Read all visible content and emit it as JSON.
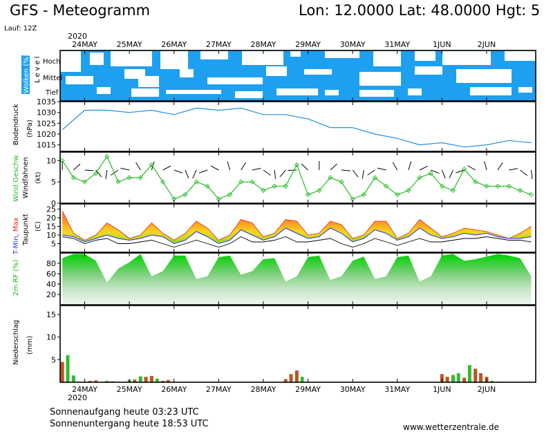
{
  "header": {
    "title": "GFS - Meteogramm",
    "coords": "Lon: 12.0000  Lat: 48.0000  Hgt: 5",
    "run": "Lauf: 12Z",
    "year_top": "2020",
    "year_bottom": "2020"
  },
  "footer": {
    "sunrise": "Sonnenaufgang heute 03:23 UTC",
    "sunset": "Sonnenuntergang heute 18:53 UTC",
    "website": "www.wetterzentrale.de"
  },
  "colors": {
    "cloud": "#1ea0f0",
    "pressure": "#2090e0",
    "wind": "#22bb22",
    "humidity": "#11cc11",
    "precip_green": "#33bb33",
    "precip_brown": "#bb5522",
    "tmin_label": "#2233ee",
    "tmax_label": "#ee2222"
  },
  "chart_data": [
    {
      "type": "heatmap",
      "name": "clouds",
      "ylabel": "Wolken (%)",
      "level_label": "Level",
      "levels": [
        "Hoch",
        "Mittel",
        "Tief"
      ],
      "x_days": [
        "24MAY",
        "25MAY",
        "26MAY",
        "27MAY",
        "28MAY",
        "29MAY",
        "30MAY",
        "31MAY",
        "1JUN",
        "2JUN"
      ]
    },
    {
      "type": "line",
      "name": "pressure",
      "ylabel": "Bodendruck",
      "unit": "(hPa)",
      "ylim": [
        1012,
        1035
      ],
      "yticks": [
        1015,
        1020,
        1025,
        1030,
        1035
      ],
      "x_days": [
        23.5,
        24.0,
        24.5,
        25.0,
        25.5,
        26.0,
        26.5,
        27.0,
        27.5,
        28.0,
        28.5,
        29.0,
        29.5,
        30.0,
        30.5,
        31.0,
        31.5,
        32.0,
        32.5,
        33.0,
        33.5,
        34.0
      ],
      "values": [
        1022,
        1031,
        1031,
        1030,
        1031,
        1029,
        1032,
        1031,
        1032,
        1029,
        1029,
        1027,
        1023,
        1023,
        1020,
        1018,
        1015,
        1016,
        1014,
        1015,
        1017,
        1016
      ]
    },
    {
      "type": "line",
      "name": "wind",
      "ylabel_series": "Wind Geschw.",
      "ylabel_flags": "Windfahnen",
      "unit": "(kt)",
      "ylim": [
        0,
        12
      ],
      "yticks": [
        0,
        5,
        10
      ],
      "x_days": [
        23.5,
        23.75,
        24.0,
        24.25,
        24.5,
        24.75,
        25.0,
        25.25,
        25.5,
        25.75,
        26.0,
        26.25,
        26.5,
        26.75,
        27.0,
        27.25,
        27.5,
        27.75,
        28.0,
        28.25,
        28.5,
        28.75,
        29.0,
        29.25,
        29.5,
        29.75,
        30.0,
        30.25,
        30.5,
        30.75,
        31.0,
        31.25,
        31.5,
        31.75,
        32.0,
        32.25,
        32.5,
        32.75,
        33.0,
        33.25,
        33.5,
        33.75,
        34.0
      ],
      "values": [
        10,
        6,
        5,
        7,
        11,
        5,
        6,
        6,
        9,
        5,
        1,
        2,
        5,
        4,
        1,
        2,
        5,
        5,
        3,
        4,
        4,
        9,
        2,
        3,
        6,
        5,
        1,
        2,
        6,
        4,
        2,
        3,
        6,
        7,
        4,
        3,
        8,
        5,
        4,
        4,
        4,
        3,
        2
      ]
    },
    {
      "type": "area",
      "name": "temperature",
      "ylabel_tmin": "T-Min,",
      "ylabel_tmax": "Max",
      "ylabel_dew": "Taupunkt",
      "unit": "(C)",
      "ylim": [
        0,
        28
      ],
      "yticks": [
        5,
        10,
        15,
        20,
        25
      ],
      "x_days": [
        23.5,
        23.75,
        24.0,
        24.25,
        24.5,
        24.75,
        25.0,
        25.25,
        25.5,
        25.75,
        26.0,
        26.25,
        26.5,
        26.75,
        27.0,
        27.25,
        27.5,
        27.75,
        28.0,
        28.25,
        28.5,
        28.75,
        29.0,
        29.25,
        29.5,
        29.75,
        30.0,
        30.25,
        30.5,
        30.75,
        31.0,
        31.25,
        31.5,
        31.75,
        32.0,
        32.25,
        32.5,
        32.75,
        33.0,
        33.25,
        33.5,
        33.75,
        34.0
      ],
      "tmax": [
        24,
        11,
        7,
        10,
        17,
        13,
        8,
        10,
        17,
        11,
        7,
        11,
        18,
        14,
        7,
        10,
        19,
        17,
        9,
        11,
        19,
        18,
        10,
        11,
        18,
        16,
        8,
        10,
        18,
        18,
        8,
        11,
        19,
        14,
        9,
        11,
        14,
        13,
        12,
        10,
        8,
        11,
        15
      ],
      "tmin": [
        10,
        9,
        6,
        8,
        10,
        8,
        7,
        8,
        10,
        9,
        5,
        7,
        12,
        9,
        5,
        7,
        13,
        10,
        7,
        9,
        14,
        11,
        8,
        9,
        14,
        11,
        6,
        8,
        13,
        11,
        7,
        9,
        14,
        10,
        8,
        9,
        11,
        10,
        11,
        9,
        8,
        8,
        9
      ],
      "dewpoint": [
        9,
        8,
        5,
        7,
        8,
        5,
        5,
        6,
        7,
        5,
        3,
        5,
        7,
        5,
        3,
        5,
        9,
        6,
        6,
        7,
        9,
        6,
        6,
        7,
        8,
        5,
        3,
        5,
        8,
        6,
        4,
        6,
        8,
        6,
        6,
        7,
        8,
        8,
        9,
        8,
        7,
        7,
        6
      ]
    },
    {
      "type": "area",
      "name": "humidity",
      "ylabel": "2m RF (%)",
      "ylim": [
        0,
        100
      ],
      "yticks": [
        20,
        40,
        60,
        80
      ],
      "x_days": [
        23.5,
        23.75,
        24.0,
        24.25,
        24.5,
        24.75,
        25.0,
        25.25,
        25.5,
        25.75,
        26.0,
        26.25,
        26.5,
        26.75,
        27.0,
        27.25,
        27.5,
        27.75,
        28.0,
        28.25,
        28.5,
        28.75,
        29.0,
        29.25,
        29.5,
        29.75,
        30.0,
        30.25,
        30.5,
        30.75,
        31.0,
        31.25,
        31.5,
        31.75,
        32.0,
        32.25,
        32.5,
        32.75,
        33.0,
        33.25,
        33.5,
        33.75,
        34.0
      ],
      "values": [
        90,
        98,
        98,
        85,
        43,
        70,
        82,
        98,
        55,
        65,
        95,
        95,
        50,
        55,
        92,
        95,
        58,
        65,
        88,
        90,
        45,
        55,
        92,
        95,
        48,
        55,
        85,
        93,
        50,
        55,
        92,
        95,
        45,
        55,
        95,
        98,
        85,
        88,
        93,
        98,
        95,
        90,
        55
      ]
    },
    {
      "type": "bar",
      "name": "precipitation",
      "ylabel": "Niederschlag",
      "unit": "(mm)",
      "ylim": [
        0,
        17
      ],
      "yticks": [
        5,
        10,
        15
      ],
      "x_days": [
        23.5,
        23.62,
        23.75,
        24.0,
        24.12,
        24.25,
        24.5,
        24.62,
        24.75,
        25.0,
        25.12,
        25.25,
        25.37,
        25.5,
        25.62,
        25.75,
        25.87,
        26.0,
        26.12,
        26.25,
        26.37,
        26.5,
        26.62,
        26.75,
        26.87,
        27.0,
        27.12,
        27.25,
        27.37,
        27.5,
        27.62,
        27.75,
        27.87,
        28.0,
        28.12,
        28.25,
        28.37,
        28.5,
        28.62,
        28.75,
        28.87,
        29.0,
        29.12,
        29.25,
        29.37,
        29.5,
        29.62,
        29.75,
        29.87,
        30.0,
        30.12,
        30.25,
        30.37,
        30.5,
        30.62,
        30.75,
        30.87,
        31.0,
        31.12,
        31.25,
        31.37,
        31.5,
        31.62,
        31.75,
        31.87,
        32.0,
        32.12,
        32.25,
        32.37,
        32.5,
        32.62,
        32.75,
        32.87,
        33.0,
        33.12,
        33.25,
        33.37,
        33.5,
        33.62,
        33.75,
        33.87,
        34.0
      ],
      "values": [
        4.5,
        6,
        1.5,
        0.1,
        0.3,
        0.4,
        0.3,
        0.2,
        0.1,
        0.5,
        0.6,
        1.3,
        1.2,
        1.4,
        0.8,
        0.3,
        0.5,
        0.1,
        0.1,
        0.1,
        0.1,
        0.1,
        0.1,
        0.1,
        0.1,
        0.1,
        0.1,
        0.1,
        0.1,
        0.1,
        0.1,
        0.1,
        0.1,
        0.1,
        0.1,
        0.1,
        0.1,
        0.7,
        1.8,
        2.6,
        1.2,
        0.1,
        0.1,
        0.1,
        0.1,
        0.1,
        0.1,
        0.1,
        0.1,
        0.1,
        0.1,
        0.1,
        0.1,
        0.1,
        0.1,
        0.1,
        0.1,
        0.1,
        0.1,
        0.1,
        0.1,
        0.1,
        0.1,
        0.1,
        0.1,
        1.8,
        1.2,
        1.6,
        2.0,
        1.0,
        3.8,
        3.0,
        2.0,
        1.2,
        0.3,
        0.1,
        0.1,
        0.1,
        0.1,
        0.1,
        0.1,
        0.1
      ],
      "colors_by_bar": [
        "brown",
        "green",
        "green",
        "green",
        "brown",
        "brown",
        "green",
        "brown",
        "brown",
        "green",
        "brown",
        "green",
        "brown",
        "brown",
        "green",
        "brown",
        "brown",
        "green",
        "brown",
        "green",
        "brown",
        "green",
        "brown",
        "green",
        "brown",
        "green",
        "brown",
        "green",
        "brown",
        "green",
        "brown",
        "green",
        "brown",
        "green",
        "brown",
        "green",
        "brown",
        "brown",
        "brown",
        "brown",
        "green",
        "green",
        "brown",
        "green",
        "brown",
        "green",
        "brown",
        "green",
        "brown",
        "green",
        "brown",
        "green",
        "brown",
        "green",
        "brown",
        "green",
        "brown",
        "green",
        "brown",
        "green",
        "brown",
        "green",
        "brown",
        "green",
        "brown",
        "brown",
        "brown",
        "green",
        "green",
        "brown",
        "green",
        "brown",
        "brown",
        "brown",
        "green",
        "brown",
        "brown",
        "green",
        "brown",
        "green",
        "brown",
        "green"
      ]
    }
  ]
}
